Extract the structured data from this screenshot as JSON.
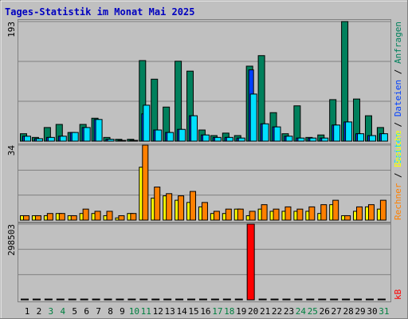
{
  "title": "Tages-Statistik im Monat Mai 2025",
  "chart_data": [
    {
      "type": "bar",
      "ylim": [
        0,
        193
      ],
      "yticks": [
        193
      ],
      "series": [
        {
          "name": "Anfragen",
          "color": "#00805c",
          "values": [
            12,
            6,
            22,
            27,
            14,
            27,
            37,
            6,
            3,
            3,
            130,
            100,
            55,
            129,
            113,
            18,
            9,
            13,
            9,
            121,
            138,
            46,
            12,
            57,
            6,
            10,
            67,
            193,
            68,
            41,
            22
          ]
        },
        {
          "name": "Dateien",
          "color": "#0040ff",
          "values": [
            8,
            4,
            6,
            8,
            14,
            22,
            35,
            3,
            1,
            1,
            44,
            18,
            14,
            19,
            41,
            10,
            6,
            6,
            5,
            115,
            28,
            23,
            8,
            5,
            5,
            5,
            26,
            31,
            12,
            9,
            12
          ]
        },
        {
          "name": "Seiten",
          "color": "#00e0ff",
          "values": [
            8,
            4,
            6,
            8,
            14,
            22,
            35,
            3,
            1,
            1,
            58,
            18,
            14,
            19,
            41,
            10,
            6,
            6,
            5,
            76,
            28,
            23,
            8,
            5,
            5,
            5,
            26,
            31,
            12,
            9,
            12
          ]
        }
      ]
    },
    {
      "type": "bar",
      "ylim": [
        0,
        34
      ],
      "yticks": [
        34
      ],
      "series": [
        {
          "name": "Besuche",
          "color": "#ffff00",
          "values": [
            2,
            2,
            2,
            3,
            2,
            3,
            3,
            2,
            1,
            3,
            24,
            10,
            11,
            9,
            8,
            6,
            3,
            3,
            5,
            2,
            5,
            4,
            4,
            4,
            4,
            3,
            7,
            2,
            4,
            6,
            5
          ]
        },
        {
          "name": "Rechner",
          "color": "#ff8000",
          "values": [
            2,
            2,
            3,
            3,
            2,
            5,
            4,
            4,
            2,
            3,
            34,
            15,
            12,
            11,
            13,
            8,
            4,
            5,
            5,
            4,
            7,
            5,
            6,
            5,
            6,
            7,
            9,
            2,
            6,
            7,
            9
          ]
        }
      ]
    },
    {
      "type": "bar",
      "ylim": [
        0,
        298503
      ],
      "yticks": [
        298503
      ],
      "categories": [
        "1",
        "2",
        "3",
        "4",
        "5",
        "6",
        "7",
        "8",
        "9",
        "10",
        "11",
        "12",
        "13",
        "14",
        "15",
        "16",
        "17",
        "18",
        "19",
        "20",
        "21",
        "22",
        "23",
        "24",
        "25",
        "26",
        "27",
        "28",
        "29",
        "30",
        "31"
      ],
      "category_colors": [
        "#000000",
        "#000000",
        "#008040",
        "#008040",
        "#000000",
        "#000000",
        "#000000",
        "#000000",
        "#000000",
        "#008040",
        "#008040",
        "#000000",
        "#000000",
        "#000000",
        "#000000",
        "#000000",
        "#008040",
        "#008040",
        "#000000",
        "#000000",
        "#000000",
        "#000000",
        "#000000",
        "#008040",
        "#008040",
        "#000000",
        "#000000",
        "#000000",
        "#000000",
        "#000000",
        "#008040"
      ],
      "series": [
        {
          "name": "kB",
          "color": "#ff0000",
          "values": [
            900,
            500,
            800,
            900,
            700,
            1200,
            1500,
            400,
            200,
            300,
            2500,
            1800,
            1400,
            1900,
            2100,
            800,
            600,
            700,
            500,
            298503,
            1600,
            1100,
            700,
            900,
            500,
            600,
            1300,
            1500,
            900,
            800,
            1000
          ]
        }
      ]
    }
  ]
}
